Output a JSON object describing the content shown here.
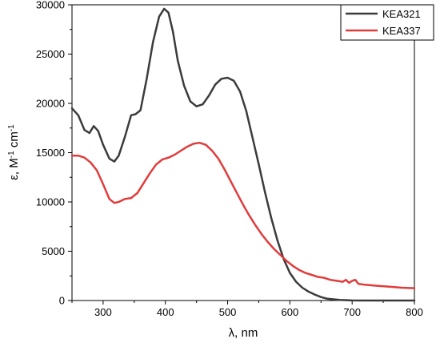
{
  "chart_data": {
    "type": "line",
    "title": "",
    "xlabel": "λ, nm",
    "ylabel": {
      "prefix": "ε, M",
      "exp1": "-1",
      "mid": " cm",
      "exp2": "-1"
    },
    "xlim": [
      250,
      800
    ],
    "ylim": [
      0,
      30000
    ],
    "x_ticks": [
      300,
      400,
      500,
      600,
      700,
      800
    ],
    "y_ticks": [
      0,
      5000,
      10000,
      15000,
      20000,
      25000,
      30000
    ],
    "grid": false,
    "legend_position": "top-right",
    "series": [
      {
        "name": "KEA321",
        "color": "#3b3b3b",
        "points": [
          [
            250,
            19500
          ],
          [
            260,
            18800
          ],
          [
            270,
            17300
          ],
          [
            278,
            17000
          ],
          [
            285,
            17700
          ],
          [
            292,
            17200
          ],
          [
            300,
            15800
          ],
          [
            310,
            14400
          ],
          [
            318,
            14100
          ],
          [
            325,
            14700
          ],
          [
            335,
            16600
          ],
          [
            345,
            18800
          ],
          [
            352,
            18900
          ],
          [
            360,
            19300
          ],
          [
            370,
            22500
          ],
          [
            380,
            26200
          ],
          [
            390,
            28800
          ],
          [
            398,
            29600
          ],
          [
            405,
            29200
          ],
          [
            412,
            27300
          ],
          [
            420,
            24300
          ],
          [
            430,
            21800
          ],
          [
            440,
            20200
          ],
          [
            450,
            19700
          ],
          [
            460,
            19900
          ],
          [
            470,
            20800
          ],
          [
            480,
            21900
          ],
          [
            490,
            22500
          ],
          [
            500,
            22600
          ],
          [
            510,
            22300
          ],
          [
            520,
            21200
          ],
          [
            530,
            19200
          ],
          [
            540,
            16500
          ],
          [
            550,
            13800
          ],
          [
            560,
            11000
          ],
          [
            570,
            8400
          ],
          [
            580,
            6100
          ],
          [
            590,
            4200
          ],
          [
            600,
            2800
          ],
          [
            610,
            1900
          ],
          [
            620,
            1300
          ],
          [
            630,
            900
          ],
          [
            640,
            600
          ],
          [
            650,
            350
          ],
          [
            660,
            180
          ],
          [
            680,
            60
          ],
          [
            700,
            10
          ],
          [
            720,
            0
          ],
          [
            740,
            0
          ],
          [
            760,
            0
          ],
          [
            780,
            0
          ],
          [
            800,
            0
          ]
        ]
      },
      {
        "name": "KEA337",
        "color": "#e03c3c",
        "points": [
          [
            250,
            14700
          ],
          [
            260,
            14700
          ],
          [
            270,
            14500
          ],
          [
            280,
            14000
          ],
          [
            290,
            13200
          ],
          [
            300,
            11800
          ],
          [
            310,
            10300
          ],
          [
            318,
            9900
          ],
          [
            325,
            10000
          ],
          [
            335,
            10300
          ],
          [
            345,
            10400
          ],
          [
            355,
            10900
          ],
          [
            365,
            11900
          ],
          [
            375,
            12900
          ],
          [
            385,
            13800
          ],
          [
            395,
            14300
          ],
          [
            405,
            14500
          ],
          [
            415,
            14800
          ],
          [
            425,
            15200
          ],
          [
            435,
            15600
          ],
          [
            445,
            15900
          ],
          [
            455,
            16000
          ],
          [
            465,
            15800
          ],
          [
            475,
            15200
          ],
          [
            485,
            14400
          ],
          [
            495,
            13300
          ],
          [
            505,
            12100
          ],
          [
            515,
            10900
          ],
          [
            525,
            9700
          ],
          [
            535,
            8600
          ],
          [
            545,
            7600
          ],
          [
            555,
            6700
          ],
          [
            565,
            5900
          ],
          [
            575,
            5200
          ],
          [
            585,
            4600
          ],
          [
            595,
            4000
          ],
          [
            605,
            3500
          ],
          [
            615,
            3100
          ],
          [
            625,
            2800
          ],
          [
            635,
            2600
          ],
          [
            645,
            2400
          ],
          [
            655,
            2300
          ],
          [
            665,
            2100
          ],
          [
            675,
            2000
          ],
          [
            685,
            1900
          ],
          [
            690,
            2100
          ],
          [
            695,
            1800
          ],
          [
            700,
            2000
          ],
          [
            705,
            2100
          ],
          [
            710,
            1700
          ],
          [
            720,
            1600
          ],
          [
            740,
            1500
          ],
          [
            760,
            1400
          ],
          [
            780,
            1300
          ],
          [
            800,
            1250
          ]
        ]
      }
    ]
  }
}
